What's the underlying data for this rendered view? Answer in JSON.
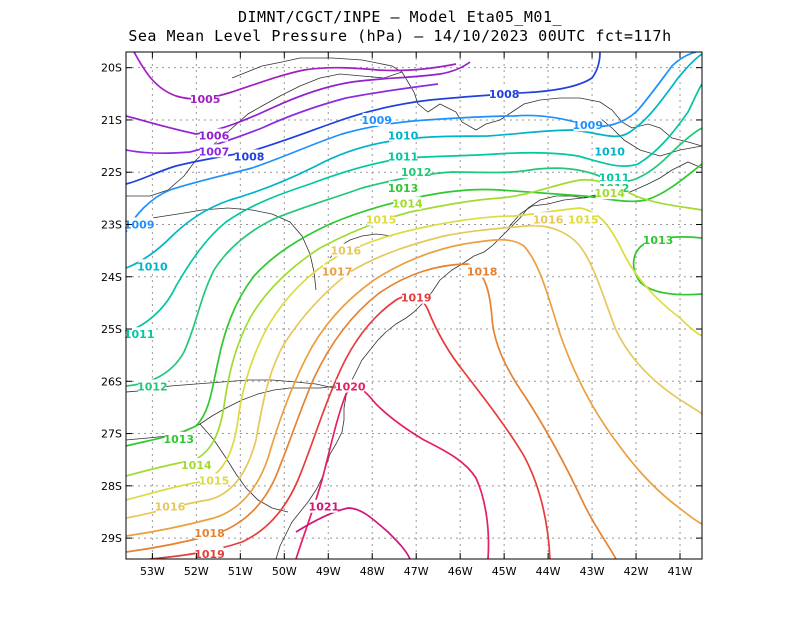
{
  "title": {
    "line1": "DIMNT/CGCT/INPE —  Model Eta05_M01_",
    "line2": "Sea Mean Level Pressure (hPa) — 14/10/2023 00UTC fct=117h"
  },
  "axes": {
    "lat_labels": [
      "20S",
      "21S",
      "22S",
      "23S",
      "24S",
      "25S",
      "26S",
      "27S",
      "28S",
      "29S"
    ],
    "lon_labels": [
      "53W",
      "52W",
      "51W",
      "50W",
      "49W",
      "48W",
      "47W",
      "46W",
      "45W",
      "44W",
      "43W",
      "42W",
      "41W"
    ],
    "lat_range": [
      -29.4,
      -19.7
    ],
    "lon_range": [
      -53.6,
      -40.5
    ]
  },
  "colors": {
    "1005": "#a020c0",
    "1006": "#9020d0",
    "1007": "#8a2be2",
    "1008": "#2040e0",
    "1009": "#1e90ff",
    "1010": "#00b4c8",
    "1011": "#00c8a0",
    "1012": "#20c878",
    "1013": "#30c830",
    "1014": "#a0dc30",
    "1015": "#dcdc40",
    "1016": "#e6c85a",
    "1017": "#eba040",
    "1018": "#e68232",
    "1019": "#e63c3c",
    "1020": "#e61e64",
    "1021": "#d2147a"
  },
  "isobar_labels": [
    {
      "text": "1005",
      "level": "1005",
      "lon": -51.8,
      "lat": -20.6
    },
    {
      "text": "1006",
      "level": "1006",
      "lon": -51.6,
      "lat": -21.3
    },
    {
      "text": "1007",
      "level": "1007",
      "lon": -51.6,
      "lat": -21.6
    },
    {
      "text": "1008",
      "level": "1008",
      "lon": -50.8,
      "lat": -21.7
    },
    {
      "text": "1008",
      "level": "1008",
      "lon": -45.0,
      "lat": -20.5
    },
    {
      "text": "1009",
      "level": "1009",
      "lon": -53.3,
      "lat": -23.0
    },
    {
      "text": "1009",
      "level": "1009",
      "lon": -47.9,
      "lat": -21.0
    },
    {
      "text": "1009",
      "level": "1009",
      "lon": -43.1,
      "lat": -21.1
    },
    {
      "text": "1010",
      "level": "1010",
      "lon": -53.0,
      "lat": -23.8
    },
    {
      "text": "1010",
      "level": "1010",
      "lon": -47.3,
      "lat": -21.3
    },
    {
      "text": "1010",
      "level": "1010",
      "lon": -42.6,
      "lat": -21.6
    },
    {
      "text": "1011",
      "level": "1011",
      "lon": -53.3,
      "lat": -25.1
    },
    {
      "text": "1011",
      "level": "1011",
      "lon": -47.3,
      "lat": -21.7
    },
    {
      "text": "1011",
      "level": "1011",
      "lon": -42.5,
      "lat": -22.1
    },
    {
      "text": "1012",
      "level": "1012",
      "lon": -47.0,
      "lat": -22.0
    },
    {
      "text": "1012",
      "level": "1012",
      "lon": -53.0,
      "lat": -26.1
    },
    {
      "text": "1012",
      "level": "1012",
      "lon": -42.5,
      "lat": -22.3
    },
    {
      "text": "1013",
      "level": "1013",
      "lon": -47.3,
      "lat": -22.3
    },
    {
      "text": "1013",
      "level": "1013",
      "lon": -52.4,
      "lat": -27.1
    },
    {
      "text": "1013",
      "level": "1013",
      "lon": -41.5,
      "lat": -23.3
    },
    {
      "text": "1014",
      "level": "1014",
      "lon": -47.2,
      "lat": -22.6
    },
    {
      "text": "1014",
      "level": "1014",
      "lon": -52.0,
      "lat": -27.6
    },
    {
      "text": "1014",
      "level": "1014",
      "lon": -42.6,
      "lat": -22.4
    },
    {
      "text": "1015",
      "level": "1015",
      "lon": -47.8,
      "lat": -22.9
    },
    {
      "text": "1015",
      "level": "1015",
      "lon": -51.6,
      "lat": -27.9
    },
    {
      "text": "1015",
      "level": "1015",
      "lon": -43.2,
      "lat": -22.9
    },
    {
      "text": "1016",
      "level": "1016",
      "lon": -48.6,
      "lat": -23.5
    },
    {
      "text": "1016",
      "level": "1016",
      "lon": -52.6,
      "lat": -28.4
    },
    {
      "text": "1016",
      "level": "1016",
      "lon": -44.0,
      "lat": -22.9
    },
    {
      "text": "1017",
      "level": "1017",
      "lon": -48.8,
      "lat": -23.9
    },
    {
      "text": "1018",
      "level": "1018",
      "lon": -45.5,
      "lat": -23.9
    },
    {
      "text": "1018",
      "level": "1018",
      "lon": -51.7,
      "lat": -28.9
    },
    {
      "text": "1019",
      "level": "1019",
      "lon": -47.0,
      "lat": -24.4
    },
    {
      "text": "1019",
      "level": "1019",
      "lon": -51.7,
      "lat": -29.3
    },
    {
      "text": "1020",
      "level": "1020",
      "lon": -48.5,
      "lat": -26.1
    },
    {
      "text": "1021",
      "level": "1021",
      "lon": -49.1,
      "lat": -28.4
    }
  ]
}
